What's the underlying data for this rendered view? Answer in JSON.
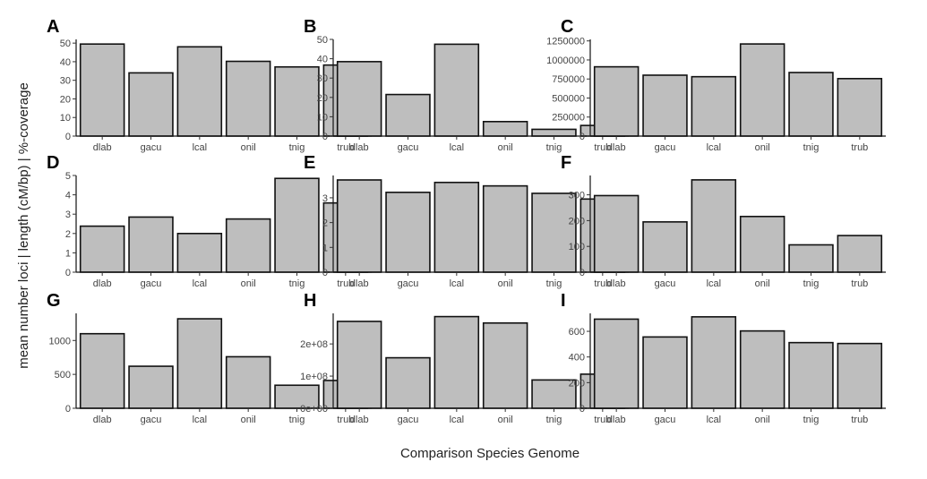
{
  "xlabel": "Comparison Species Genome",
  "ylabel": "mean number loci | length (cM/bp) | %-coverage",
  "chart_data": [
    {
      "panel": "A",
      "type": "bar",
      "categories": [
        "dlab",
        "gacu",
        "lcal",
        "onil",
        "tnig",
        "trub"
      ],
      "values": [
        49.5,
        34,
        48,
        40.2,
        37.2,
        38.2
      ],
      "ylim": [
        0,
        52
      ],
      "yticks": [
        0,
        10,
        20,
        30,
        40,
        50
      ],
      "ytick_labels": [
        "0",
        "10",
        "20",
        "30",
        "40",
        "50"
      ]
    },
    {
      "panel": "B",
      "type": "bar",
      "categories": [
        "dlab",
        "gacu",
        "lcal",
        "onil",
        "tnig",
        "trub"
      ],
      "values": [
        38.5,
        21.5,
        47.5,
        7.5,
        3.5,
        5.5
      ],
      "ylim": [
        0,
        50
      ],
      "yticks": [
        0,
        10,
        20,
        30,
        40,
        50
      ],
      "ytick_labels": [
        "0",
        "10",
        "20",
        "30",
        "40",
        "50"
      ]
    },
    {
      "panel": "C",
      "type": "bar",
      "categories": [
        "dlab",
        "gacu",
        "lcal",
        "onil",
        "tnig",
        "trub"
      ],
      "values": [
        910000,
        800000,
        780000,
        1210000,
        835000,
        755000
      ],
      "ylim": [
        0,
        1270000
      ],
      "yticks": [
        0,
        250000,
        500000,
        750000,
        1000000,
        1250000
      ],
      "ytick_labels": [
        "0",
        "250000",
        "500000",
        "750000",
        "1000000",
        "1250000"
      ]
    },
    {
      "panel": "D",
      "type": "bar",
      "categories": [
        "dlab",
        "gacu",
        "lcal",
        "onil",
        "tnig",
        "trub"
      ],
      "values": [
        2.38,
        2.85,
        2.0,
        2.75,
        4.85,
        3.58
      ],
      "ylim": [
        0,
        5
      ],
      "yticks": [
        0,
        1,
        2,
        3,
        4,
        5
      ],
      "ytick_labels": [
        "0",
        "1",
        "2",
        "3",
        "4",
        "5"
      ]
    },
    {
      "panel": "E",
      "type": "bar",
      "categories": [
        "dlab",
        "gacu",
        "lcal",
        "onil",
        "tnig",
        "trub"
      ],
      "values": [
        3.72,
        3.22,
        3.62,
        3.48,
        3.18,
        2.95
      ],
      "ylim": [
        0,
        3.9
      ],
      "yticks": [
        0,
        1,
        2,
        3
      ],
      "ytick_labels": [
        "0",
        "1",
        "2",
        "3"
      ]
    },
    {
      "panel": "F",
      "type": "bar",
      "categories": [
        "dlab",
        "gacu",
        "lcal",
        "onil",
        "tnig",
        "trub"
      ],
      "values": [
        297,
        195,
        358,
        216,
        106,
        142
      ],
      "ylim": [
        0,
        375
      ],
      "yticks": [
        0,
        100,
        200,
        300
      ],
      "ytick_labels": [
        "0",
        "100",
        "200",
        "300"
      ]
    },
    {
      "panel": "G",
      "type": "bar",
      "categories": [
        "dlab",
        "gacu",
        "lcal",
        "onil",
        "tnig",
        "trub"
      ],
      "values": [
        1100,
        620,
        1320,
        760,
        340,
        410
      ],
      "ylim": [
        0,
        1400
      ],
      "yticks": [
        0,
        500,
        1000
      ],
      "ytick_labels": [
        "0",
        "500",
        "1000"
      ]
    },
    {
      "panel": "H",
      "type": "bar",
      "categories": [
        "dlab",
        "gacu",
        "lcal",
        "onil",
        "tnig",
        "trub"
      ],
      "values": [
        270000000,
        157000000,
        285000000,
        265000000,
        88000000,
        106000000
      ],
      "ylim": [
        0,
        295000000
      ],
      "yticks": [
        0,
        100000000,
        200000000
      ],
      "ytick_labels": [
        "0e+00",
        "1e+08",
        "2e+08"
      ]
    },
    {
      "panel": "I",
      "type": "bar",
      "categories": [
        "dlab",
        "gacu",
        "lcal",
        "onil",
        "tnig",
        "trub"
      ],
      "values": [
        695,
        556,
        713,
        603,
        512,
        505
      ],
      "ylim": [
        0,
        740
      ],
      "yticks": [
        0,
        200,
        400,
        600
      ],
      "ytick_labels": [
        "0",
        "200",
        "400",
        "600"
      ]
    }
  ]
}
